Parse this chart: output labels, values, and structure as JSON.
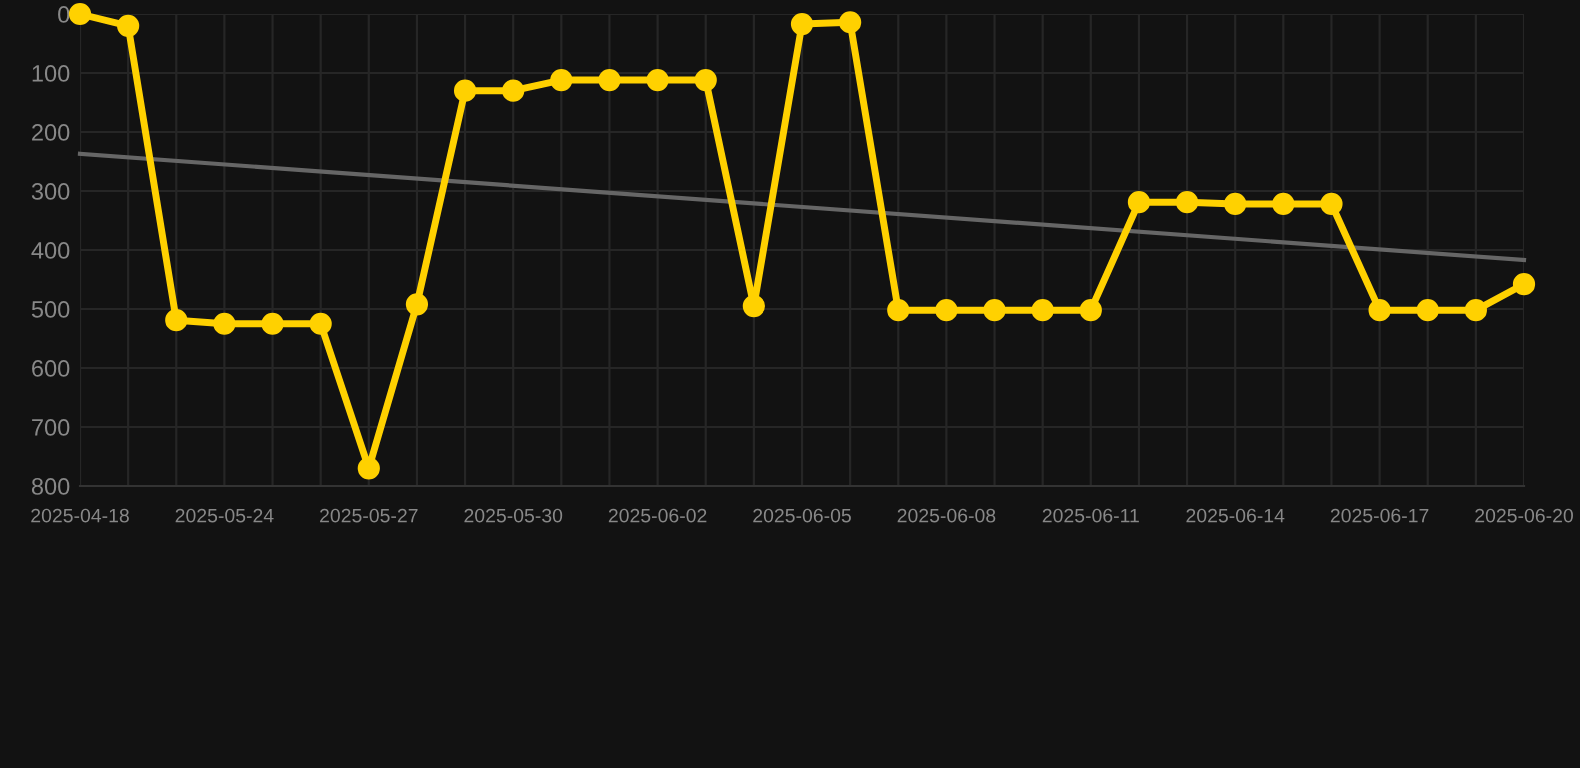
{
  "chart_data": {
    "type": "line",
    "categories": [
      "2025-04-18",
      null,
      null,
      "2025-05-24",
      null,
      null,
      "2025-05-27",
      null,
      null,
      "2025-05-30",
      null,
      null,
      "2025-06-02",
      null,
      null,
      "2025-06-05",
      null,
      null,
      "2025-06-08",
      null,
      null,
      "2025-06-11",
      null,
      null,
      "2025-06-14",
      null,
      null,
      "2025-06-17",
      null,
      null,
      "2025-06-20"
    ],
    "series": [
      {
        "color": "#ffd100",
        "marker": "circle",
        "values": [
          0,
          20,
          519,
          525,
          525,
          525,
          770,
          492,
          130,
          130,
          112,
          112,
          112,
          112,
          495,
          17,
          14,
          502,
          502,
          502,
          502,
          502,
          319,
          319,
          322,
          322,
          322,
          502,
          502,
          502,
          458
        ]
      },
      {
        "type": "line",
        "color": "#666666",
        "marker": "none",
        "values": [
          237,
          null,
          null,
          null,
          null,
          null,
          null,
          null,
          null,
          null,
          null,
          null,
          null,
          null,
          null,
          null,
          null,
          null,
          null,
          null,
          null,
          null,
          null,
          null,
          null,
          null,
          null,
          null,
          null,
          null,
          417
        ]
      }
    ],
    "ylim": [
      800,
      0
    ],
    "yticks": [
      0,
      100,
      200,
      300,
      400,
      500,
      600,
      700,
      800
    ],
    "grid": true
  }
}
